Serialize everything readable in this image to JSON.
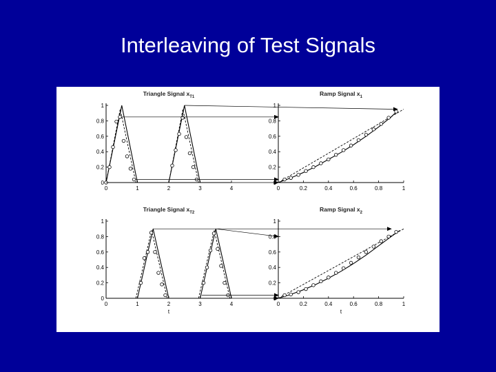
{
  "slide": {
    "title": "Interleaving of Test Signals"
  },
  "colors": {
    "background": "#000099",
    "title": "#ffffff",
    "line": "#000000"
  },
  "chart_data": [
    {
      "id": "t1",
      "type": "line",
      "title": "Triangle Signal x",
      "title_sub": "T1",
      "xlabel": "",
      "xlim": [
        0,
        4
      ],
      "ylim": [
        0,
        1
      ],
      "xticks": [
        0,
        1,
        2,
        3,
        4
      ],
      "yticks": [
        0,
        0.2,
        0.4,
        0.6,
        0.8,
        1
      ],
      "tick_labels_x": [
        "0",
        "1",
        "2",
        "3",
        "4"
      ],
      "tick_labels_y": [
        "0",
        "0.2",
        "0.4",
        "0.6",
        "0.8",
        "1"
      ],
      "series": [
        {
          "style": "solid",
          "x": [
            0,
            0.5,
            1
          ],
          "y": [
            0,
            1,
            0
          ]
        },
        {
          "style": "solid",
          "x": [
            2,
            2.5,
            3
          ],
          "y": [
            0,
            1,
            0
          ]
        },
        {
          "style": "dashed",
          "x": [
            0,
            0.45,
            0.95
          ],
          "y": [
            0,
            0.95,
            0
          ]
        },
        {
          "style": "dashed",
          "x": [
            2,
            2.45,
            2.95
          ],
          "y": [
            0,
            0.95,
            0
          ]
        }
      ],
      "markers": {
        "x": [
          0,
          0.11,
          0.22,
          0.33,
          0.44,
          0.56,
          0.67,
          0.78,
          0.89,
          2.11,
          2.22,
          2.33,
          2.44,
          2.56,
          2.67,
          2.78,
          2.89
        ],
        "y": [
          0,
          0.2,
          0.46,
          0.79,
          0.85,
          0.54,
          0.34,
          0.18,
          0.04,
          0.22,
          0.42,
          0.63,
          0.84,
          0.59,
          0.38,
          0.2,
          0.04
        ]
      }
    },
    {
      "id": "r1",
      "type": "line",
      "title": "Ramp Signal x",
      "title_sub": "1",
      "xlabel": "",
      "xlim": [
        0,
        1
      ],
      "ylim": [
        0,
        1
      ],
      "xticks": [
        0,
        0.2,
        0.4,
        0.6,
        0.8,
        1
      ],
      "yticks": [
        0,
        0.2,
        0.4,
        0.6,
        0.8,
        1
      ],
      "tick_labels_x": [
        "0",
        "0.2",
        "0.4",
        "0.6",
        "0.8",
        "1"
      ],
      "tick_labels_y": [
        "0",
        "0.2",
        "0.4",
        "0.6",
        "0.8",
        "1"
      ],
      "series": [
        {
          "style": "dashed",
          "x": [
            0,
            1
          ],
          "y": [
            0,
            0.95
          ]
        },
        {
          "style": "solid",
          "x": [
            0,
            0.1,
            0.2,
            0.3,
            0.4,
            0.5,
            0.6,
            0.7,
            0.8,
            0.9,
            0.95
          ],
          "y": [
            0,
            0.06,
            0.13,
            0.21,
            0.3,
            0.39,
            0.49,
            0.6,
            0.72,
            0.85,
            0.93
          ]
        }
      ],
      "markers": {
        "x": [
          0.05,
          0.1,
          0.16,
          0.22,
          0.28,
          0.34,
          0.4,
          0.46,
          0.52,
          0.58,
          0.64,
          0.7,
          0.76,
          0.82,
          0.88,
          0.94
        ],
        "y": [
          0.04,
          0.06,
          0.1,
          0.15,
          0.2,
          0.25,
          0.3,
          0.36,
          0.42,
          0.48,
          0.55,
          0.62,
          0.69,
          0.76,
          0.84,
          0.92
        ]
      }
    },
    {
      "id": "t2",
      "type": "line",
      "title": "Triangle Signal x",
      "title_sub": "T2",
      "xlabel": "t",
      "xlim": [
        0,
        4
      ],
      "ylim": [
        0,
        1
      ],
      "xticks": [
        0,
        1,
        2,
        3,
        4
      ],
      "yticks": [
        0,
        0.2,
        0.4,
        0.6,
        0.8,
        1
      ],
      "tick_labels_x": [
        "0",
        "1",
        "2",
        "3",
        "4"
      ],
      "tick_labels_y": [
        "0",
        "0.2",
        "0.4",
        "0.6",
        "0.8",
        "1"
      ],
      "series": [
        {
          "style": "solid",
          "x": [
            1,
            1.5,
            2
          ],
          "y": [
            0,
            0.9,
            0
          ]
        },
        {
          "style": "solid",
          "x": [
            3,
            3.5,
            4
          ],
          "y": [
            0,
            0.9,
            0
          ]
        },
        {
          "style": "dashed",
          "x": [
            0.95,
            1.45,
            1.95
          ],
          "y": [
            0,
            0.88,
            0
          ]
        },
        {
          "style": "dashed",
          "x": [
            2.95,
            3.45,
            3.95
          ],
          "y": [
            0,
            0.88,
            0
          ]
        }
      ],
      "markers": {
        "x": [
          1.11,
          1.22,
          1.33,
          1.44,
          1.56,
          1.67,
          1.78,
          1.89,
          3.11,
          3.22,
          3.33,
          3.44,
          3.56,
          3.67,
          3.78,
          3.89
        ],
        "y": [
          0.2,
          0.52,
          0.6,
          0.85,
          0.6,
          0.33,
          0.18,
          0.04,
          0.2,
          0.4,
          0.62,
          0.84,
          0.64,
          0.42,
          0.2,
          0.04
        ]
      }
    },
    {
      "id": "r2",
      "type": "line",
      "title": "Ramp Signal x",
      "title_sub": "2",
      "xlabel": "t",
      "xlim": [
        0,
        1
      ],
      "ylim": [
        0,
        1
      ],
      "xticks": [
        0,
        0.2,
        0.4,
        0.6,
        0.8,
        1
      ],
      "yticks": [
        0,
        0.2,
        0.4,
        0.6,
        0.8,
        1
      ],
      "tick_labels_x": [
        "0",
        "0.2",
        "0.4",
        "0.6",
        "0.8",
        "1"
      ],
      "tick_labels_y": [
        "0",
        "0.2",
        "0.4",
        "0.6",
        "0.8",
        "1"
      ],
      "series": [
        {
          "style": "dashed",
          "x": [
            0,
            1
          ],
          "y": [
            0,
            0.9
          ]
        },
        {
          "style": "solid",
          "x": [
            0,
            0.1,
            0.2,
            0.3,
            0.4,
            0.5,
            0.6,
            0.7,
            0.8,
            0.9,
            0.97
          ],
          "y": [
            0,
            0.05,
            0.11,
            0.18,
            0.26,
            0.35,
            0.45,
            0.56,
            0.68,
            0.8,
            0.88
          ]
        }
      ],
      "markers": {
        "x": [
          0.05,
          0.1,
          0.16,
          0.22,
          0.28,
          0.34,
          0.4,
          0.46,
          0.52,
          0.58,
          0.64,
          0.7,
          0.76,
          0.82,
          0.88,
          0.94
        ],
        "y": [
          0.04,
          0.05,
          0.08,
          0.12,
          0.17,
          0.22,
          0.27,
          0.33,
          0.39,
          0.46,
          0.53,
          0.6,
          0.67,
          0.74,
          0.8,
          0.86
        ]
      }
    }
  ],
  "interleave_arrows": [
    {
      "from_panel": "t1",
      "from": [
        0.5,
        0.85
      ],
      "to_panel": "r1",
      "to": [
        0,
        0.85
      ]
    },
    {
      "from_panel": "t1",
      "from": [
        0.95,
        0.04
      ],
      "to_panel": "r1",
      "to": [
        0,
        0.04
      ]
    },
    {
      "from_panel": "t1",
      "from": [
        0,
        0
      ],
      "to_panel": "r1",
      "to": [
        0,
        0
      ]
    },
    {
      "from_panel": "t1",
      "from": [
        2.5,
        1
      ],
      "to_panel": "r1",
      "to": [
        0.95,
        0.95
      ]
    },
    {
      "from_panel": "t2",
      "from": [
        1.5,
        0.9
      ],
      "to_panel": "r2",
      "to": [
        0.9,
        0.9
      ]
    },
    {
      "from_panel": "t2",
      "from": [
        3.5,
        0.9
      ],
      "to_panel": "r2",
      "to": [
        0,
        0.8
      ]
    },
    {
      "from_panel": "t2",
      "from": [
        1.95,
        0
      ],
      "to_panel": "r2",
      "to": [
        0,
        0
      ]
    },
    {
      "from_panel": "t2",
      "from": [
        3.05,
        0.04
      ],
      "to_panel": "r2",
      "to": [
        0,
        0.04
      ]
    }
  ]
}
